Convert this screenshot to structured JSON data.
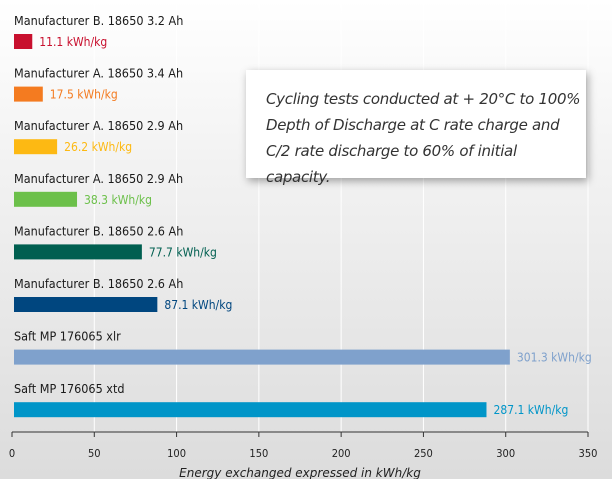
{
  "chart_data": {
    "type": "bar",
    "orientation": "horizontal",
    "categories": [
      "Manufacturer B. 18650 3.2 Ah",
      "Manufacturer A. 18650 3.4 Ah",
      "Manufacturer A. 18650 2.9 Ah",
      "Manufacturer A. 18650 2.9 Ah",
      "Manufacturer B. 18650 2.6 Ah",
      "Manufacturer B. 18650 2.6 Ah",
      "Saft MP 176065 xlr",
      "Saft MP 176065 xtd"
    ],
    "values": [
      11.1,
      17.5,
      26.2,
      38.3,
      77.7,
      87.1,
      301.3,
      287.1
    ],
    "value_labels": [
      "11.1 kWh/kg",
      "17.5 kWh/kg",
      "26.2 kWh/kg",
      "38.3 kWh/kg",
      "77.7 kWh/kg",
      "87.1 kWh/kg",
      "301.3 kWh/kg",
      "287.1 kWh/kg"
    ],
    "colors": [
      "#c8102e",
      "#f47b20",
      "#fdb913",
      "#6cc04a",
      "#005f50",
      "#00467f",
      "#7fa1cc",
      "#0095c8"
    ],
    "xlabel": "Energy exchanged expressed in kWh/kg",
    "xlim": [
      0,
      350
    ],
    "xticks": [
      0,
      50,
      100,
      150,
      200,
      250,
      300,
      350
    ],
    "grid": true,
    "annotation": "Cycling tests conducted at + 20°C to 100% Depth of Discharge at C rate charge and C/2 rate discharge to 60% of initial capacity."
  }
}
